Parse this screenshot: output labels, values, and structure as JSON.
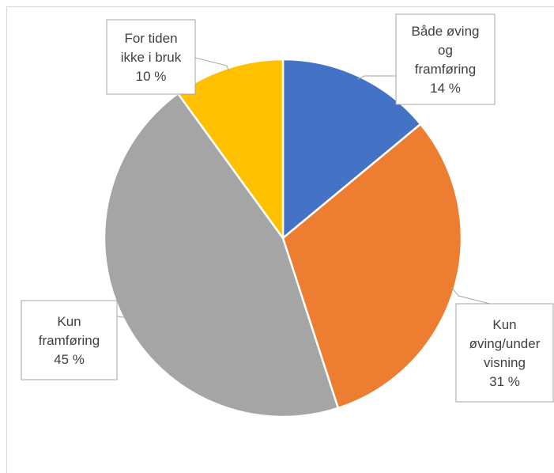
{
  "chart_data": {
    "type": "pie",
    "title": "",
    "slices": [
      {
        "label_lines": [
          "Både øving",
          "og",
          "framføring"
        ],
        "value": 14,
        "value_label": "14 %",
        "color": "#4472C4"
      },
      {
        "label_lines": [
          "Kun",
          "øving/under",
          "visning"
        ],
        "value": 31,
        "value_label": "31 %",
        "color": "#ED7D31"
      },
      {
        "label_lines": [
          "Kun",
          "framføring"
        ],
        "value": 45,
        "value_label": "45 %",
        "color": "#A5A5A5"
      },
      {
        "label_lines": [
          "For tiden",
          "ikke i bruk"
        ],
        "value": 10,
        "value_label": "10 %",
        "color": "#FFC000"
      }
    ],
    "start_angle": "12 o'clock",
    "direction": "clockwise",
    "legend": "none",
    "data_labels": "callouts"
  }
}
